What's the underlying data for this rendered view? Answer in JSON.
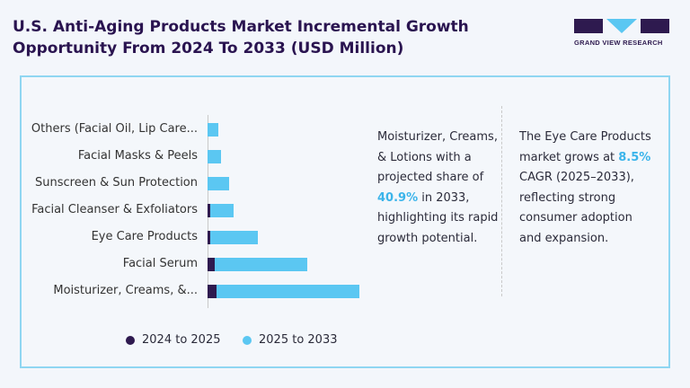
{
  "title": "U.S. Anti-Aging Products Market Incremental Growth Opportunity From 2024 To 2033 (USD Million)",
  "logo": {
    "text": "GRAND VIEW RESEARCH"
  },
  "colors": {
    "series1": "#2e1a4f",
    "series2": "#5bc7f2",
    "accent": "#3bb4ea"
  },
  "chart_data": {
    "type": "bar",
    "orientation": "horizontal",
    "stacked": true,
    "categories": [
      "Others (Facial Oil, Lip Care...",
      "Facial Masks & Peels",
      "Sunscreen & Sun Protection",
      "Facial Cleanser & Exfoliators",
      "Eye Care Products",
      "Facial Serum",
      "Moisturizer, Creams, &..."
    ],
    "series": [
      {
        "name": "2024 to 2025",
        "values": [
          0,
          0,
          0,
          3,
          3,
          8,
          10
        ]
      },
      {
        "name": "2025 to 2033",
        "values": [
          12,
          15,
          24,
          26,
          53,
          103,
          159
        ]
      }
    ],
    "units": "relative (no axis values shown)",
    "legend": "bottom"
  },
  "notes": {
    "left": {
      "pre": "Moisturizer, Creams, & Lotions with a projected share of ",
      "highlight": "40.9%",
      "post": " in 2033, highlighting its rapid growth potential."
    },
    "right": {
      "pre": "The Eye Care Products market grows at ",
      "highlight": "8.5%",
      "post": " CAGR (2025–2033), reflecting strong consumer adoption and expansion."
    }
  }
}
